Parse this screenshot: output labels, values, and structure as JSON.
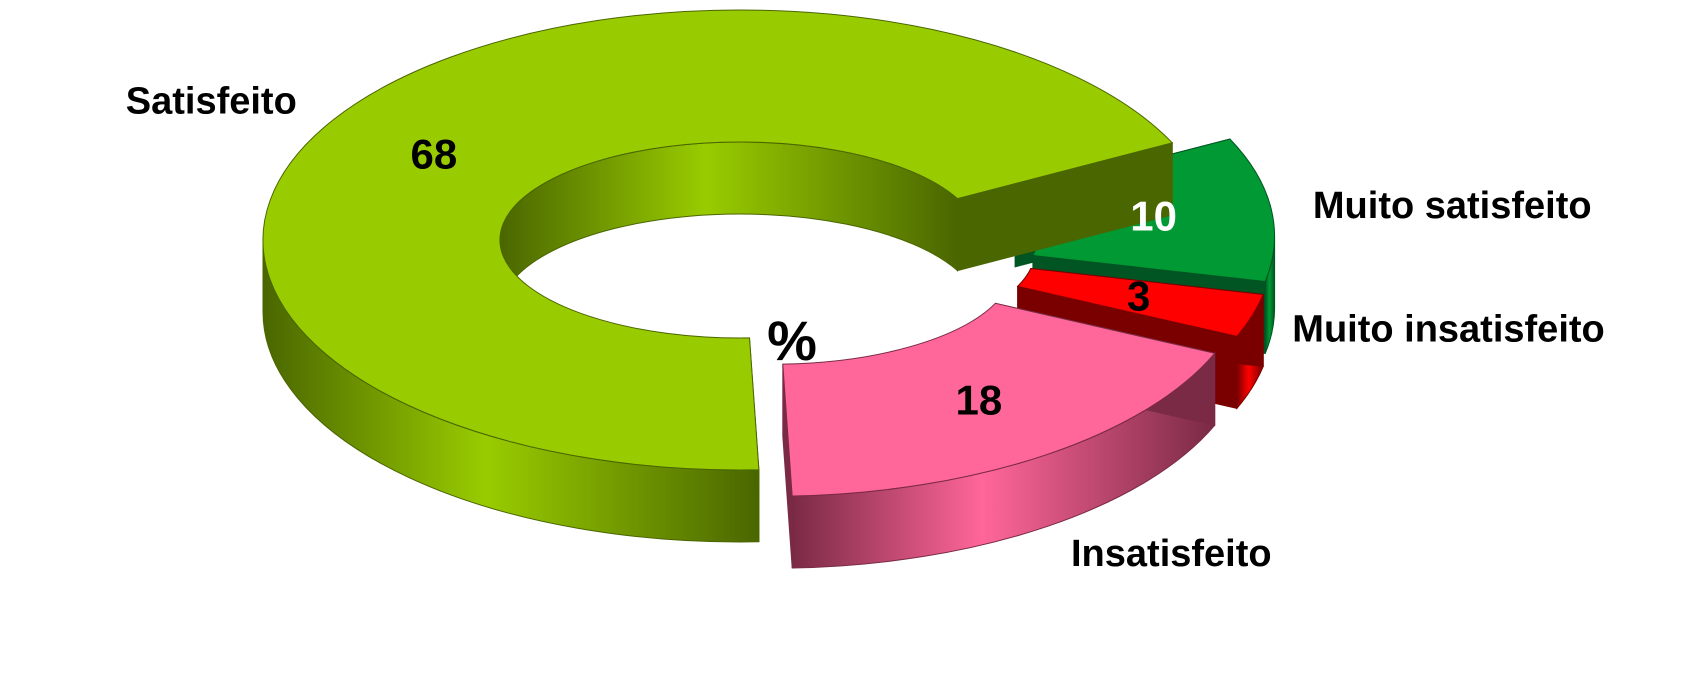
{
  "chart_data": {
    "type": "pie",
    "variant": "3d-exploded-donut",
    "center_label": "%",
    "slices": [
      {
        "name": "Muito satisfeito",
        "value": 10,
        "color": "#009933",
        "side_color": "#005522",
        "value_label_color": "#ffffff",
        "exploded": true
      },
      {
        "name": "Muito insatisfeito",
        "value": 3,
        "color": "#ff0000",
        "side_color": "#7a0000",
        "value_label_color": "#000000",
        "exploded": true
      },
      {
        "name": "Insatisfeito",
        "value": 18,
        "color": "#ff6699",
        "side_color": "#7a2a45",
        "value_label_color": "#000000",
        "exploded": true
      },
      {
        "name": "Satisfeito",
        "value": 68,
        "color": "#99cc00",
        "side_color": "#4a6600",
        "value_label_color": "#000000",
        "exploded": false
      }
    ]
  }
}
